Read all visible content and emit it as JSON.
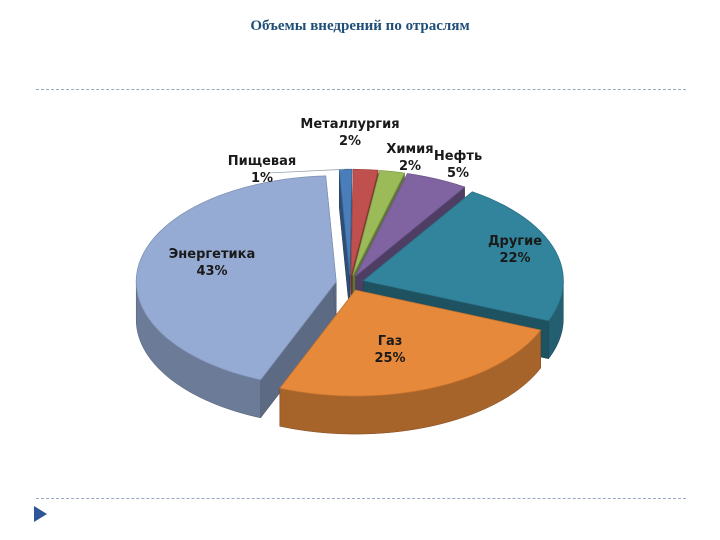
{
  "page": {
    "title": "Объемы внедрений по отраслям"
  },
  "chart_data": {
    "type": "pie",
    "title": "",
    "slices": [
      {
        "label": "Пищевая",
        "value": 1,
        "value_label": "1%",
        "color": "#4a7ebb"
      },
      {
        "label": "Металлургия",
        "value": 2,
        "value_label": "2%",
        "color": "#c0504d"
      },
      {
        "label": "Химия",
        "value": 2,
        "value_label": "2%",
        "color": "#9bbb59"
      },
      {
        "label": "Нефть",
        "value": 5,
        "value_label": "5%",
        "color": "#8064a2"
      },
      {
        "label": "Другие",
        "value": 22,
        "value_label": "22%",
        "color": "#31849b"
      },
      {
        "label": "Газ",
        "value": 25,
        "value_label": "25%",
        "color": "#e6893a"
      },
      {
        "label": "Энергетика",
        "value": 43,
        "value_label": "43%",
        "color": "#95abd3"
      }
    ]
  },
  "icons": {
    "nav": "triangle-right-icon"
  }
}
